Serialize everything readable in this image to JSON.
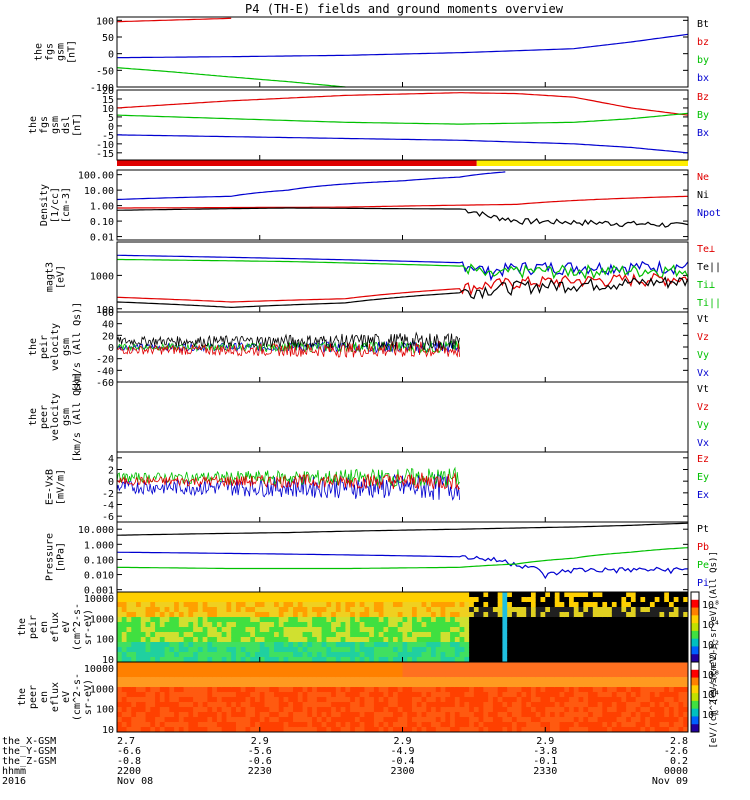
{
  "title": "P4 (TH-E) fields and ground moments overview",
  "chart_data": [
    {
      "type": "line",
      "ylabel": [
        "the",
        "fgs",
        "gsm",
        "[nT]"
      ],
      "ylim": [
        -100,
        110
      ],
      "yticks": [
        "100",
        "50",
        "0",
        "-50",
        "-100"
      ],
      "yticks_values": [
        100,
        50,
        0,
        -50,
        -100
      ],
      "legend": [
        {
          "label": "Bt",
          "color": "#000000"
        },
        {
          "label": "bz",
          "color": "#e00000"
        },
        {
          "label": "by",
          "color": "#00c000"
        },
        {
          "label": "bx",
          "color": "#0000d0"
        }
      ],
      "series": [
        {
          "name": "bz",
          "color": "#e00000",
          "x": [
            0,
            0.1,
            0.2
          ],
          "y": [
            96,
            101,
            106
          ]
        },
        {
          "name": "by",
          "color": "#00c000",
          "x": [
            0,
            0.1,
            0.2,
            0.3,
            0.4
          ],
          "y": [
            -42,
            -55,
            -70,
            -84,
            -100
          ]
        },
        {
          "name": "bx",
          "color": "#0000d0",
          "x": [
            0,
            0.2,
            0.4,
            0.6,
            0.8,
            0.9,
            1
          ],
          "y": [
            -12,
            -9,
            -5,
            3,
            15,
            35,
            58
          ]
        }
      ]
    },
    {
      "type": "line",
      "ylabel": [
        "the",
        "fgs",
        "gsm",
        "dsl",
        "[nT]"
      ],
      "ylim": [
        -19,
        20
      ],
      "yticks": [
        "20",
        "15",
        "10",
        "5",
        "0",
        "-5",
        "-10",
        "-15"
      ],
      "yticks_values": [
        20,
        15,
        10,
        5,
        0,
        -5,
        -10,
        -15
      ],
      "legend": [
        {
          "label": "Bz",
          "color": "#e00000"
        },
        {
          "label": "By",
          "color": "#00c000"
        },
        {
          "label": "Bx",
          "color": "#0000d0"
        }
      ],
      "series": [
        {
          "name": "Bz",
          "color": "#e00000",
          "x": [
            0,
            0.2,
            0.4,
            0.6,
            0.7,
            0.8,
            0.9,
            1
          ],
          "y": [
            10,
            14,
            17,
            18.5,
            18,
            16,
            10,
            6
          ]
        },
        {
          "name": "By",
          "color": "#00c000",
          "x": [
            0,
            0.2,
            0.4,
            0.6,
            0.8,
            0.9,
            1
          ],
          "y": [
            6,
            4,
            2,
            1,
            2,
            4,
            7
          ]
        },
        {
          "name": "Bx",
          "color": "#0000d0",
          "x": [
            0,
            0.2,
            0.4,
            0.6,
            0.7,
            0.8,
            0.9,
            1
          ],
          "y": [
            -5,
            -6,
            -7,
            -8,
            -9,
            -10,
            -12,
            -15
          ]
        }
      ]
    },
    {
      "type": "line",
      "ylabel": [
        "Density",
        "[1/cc]",
        "[cm-3]"
      ],
      "scale": "log",
      "ylim": [
        0.006,
        200
      ],
      "yticks": [
        "100.00",
        "10.00",
        "1.00",
        "0.10",
        "0.01"
      ],
      "yticks_values": [
        100,
        10,
        1,
        0.1,
        0.01
      ],
      "legend": [
        {
          "label": "Ne",
          "color": "#e00000"
        },
        {
          "label": "Ni",
          "color": "#000000"
        },
        {
          "label": "Npot",
          "color": "#0000d0"
        }
      ],
      "series": [
        {
          "name": "Npot",
          "color": "#0000d0",
          "x": [
            0,
            0.2,
            0.3,
            0.4,
            0.5,
            0.6,
            0.68
          ],
          "y": [
            2.5,
            4,
            10,
            25,
            40,
            70,
            150
          ]
        },
        {
          "name": "Ne",
          "color": "#e00000",
          "x": [
            0,
            0.4,
            0.7,
            1
          ],
          "y": [
            0.7,
            0.8,
            1.2,
            4
          ]
        },
        {
          "name": "Ni",
          "color": "#000000",
          "x": [
            0,
            0.3,
            0.6,
            0.65,
            0.7,
            1
          ],
          "y": [
            0.5,
            0.7,
            0.6,
            0.2,
            0.1,
            0.05
          ]
        }
      ]
    },
    {
      "type": "line",
      "ylabel": [
        "magt3",
        "[eV]"
      ],
      "scale": "log",
      "ylim": [
        80,
        10000
      ],
      "yticks": [
        "1000",
        "100"
      ],
      "yticks_values": [
        1000,
        100
      ],
      "legend": [
        {
          "label": "Te⊥",
          "color": "#e00000"
        },
        {
          "label": "Te||",
          "color": "#000000"
        },
        {
          "label": "Ti⊥",
          "color": "#00c000"
        },
        {
          "label": "Ti||",
          "color": "#00c000"
        }
      ],
      "series": [
        {
          "name": "Ti⊥",
          "color": "#0000d0",
          "x": [
            0,
            0.3,
            0.6,
            0.65,
            0.7,
            1
          ],
          "y": [
            4000,
            3200,
            2400,
            1200,
            1700,
            1800
          ]
        },
        {
          "name": "Ti||",
          "color": "#00c000",
          "x": [
            0,
            0.3,
            0.6,
            0.65,
            0.7,
            1
          ],
          "y": [
            3000,
            2600,
            1900,
            900,
            1300,
            1400
          ]
        },
        {
          "name": "Te⊥",
          "color": "#e00000",
          "x": [
            0,
            0.2,
            0.4,
            0.6,
            0.7,
            1
          ],
          "y": [
            220,
            160,
            200,
            400,
            600,
            800
          ]
        },
        {
          "name": "Te||",
          "color": "#000000",
          "x": [
            0,
            0.2,
            0.4,
            0.6,
            0.7,
            1
          ],
          "y": [
            160,
            110,
            150,
            300,
            450,
            650
          ]
        }
      ]
    },
    {
      "type": "line",
      "ylabel": [
        "the",
        "peir",
        "velocity",
        "gsm",
        "[km/s (All Qs)]"
      ],
      "ylim": [
        -60,
        60
      ],
      "yticks": [
        "60",
        "40",
        "20",
        "0",
        "-20",
        "-40",
        "-60"
      ],
      "yticks_values": [
        60,
        40,
        20,
        0,
        -20,
        -40,
        -60
      ],
      "legend": [
        {
          "label": "Vt",
          "color": "#000000"
        },
        {
          "label": "Vz",
          "color": "#e00000"
        },
        {
          "label": "Vy",
          "color": "#00c000"
        },
        {
          "label": "Vx",
          "color": "#0000d0"
        }
      ]
    },
    {
      "type": "line",
      "ylabel": [
        "the",
        "peer",
        "velocity",
        "gsm",
        "[km/s (All Qs)]"
      ],
      "legend": [
        {
          "label": "Vt",
          "color": "#000000"
        },
        {
          "label": "Vz",
          "color": "#e00000"
        },
        {
          "label": "Vy",
          "color": "#00c000"
        },
        {
          "label": "Vx",
          "color": "#0000d0"
        }
      ]
    },
    {
      "type": "line",
      "ylabel": [
        "E=-VxB",
        "[mV/m]"
      ],
      "ylim": [
        -7,
        5
      ],
      "yticks": [
        "4",
        "2",
        "0",
        "-2",
        "-4",
        "-6"
      ],
      "yticks_values": [
        4,
        2,
        0,
        -2,
        -4,
        -6
      ],
      "legend": [
        {
          "label": "Ez",
          "color": "#e00000"
        },
        {
          "label": "Ey",
          "color": "#00c000"
        },
        {
          "label": "Ex",
          "color": "#0000d0"
        }
      ]
    },
    {
      "type": "line",
      "ylabel": [
        "Pressure",
        "[nPa]"
      ],
      "scale": "log",
      "ylim": [
        0.0007,
        30
      ],
      "yticks": [
        "10.000",
        "1.000",
        "0.100",
        "0.010",
        "0.001"
      ],
      "yticks_values": [
        10,
        1,
        0.1,
        0.01,
        0.001
      ],
      "legend": [
        {
          "label": "Pt",
          "color": "#000000"
        },
        {
          "label": "Pb",
          "color": "#e00000"
        },
        {
          "label": "Pe",
          "color": "#00c000"
        },
        {
          "label": "Pi",
          "color": "#0000d0"
        }
      ],
      "series": [
        {
          "name": "Pt",
          "color": "#000000",
          "x": [
            0,
            0.3,
            0.6,
            0.8,
            0.9,
            1
          ],
          "y": [
            4,
            6,
            10,
            14,
            18,
            25
          ]
        },
        {
          "name": "Pi",
          "color": "#0000d0",
          "x": [
            0,
            0.2,
            0.4,
            0.6,
            0.7,
            0.75,
            0.8,
            1
          ],
          "y": [
            0.3,
            0.25,
            0.2,
            0.15,
            0.05,
            0.008,
            0.02,
            0.02
          ]
        },
        {
          "name": "Pe",
          "color": "#00c000",
          "x": [
            0,
            0.2,
            0.4,
            0.6,
            0.7,
            0.8,
            0.9,
            1
          ],
          "y": [
            0.03,
            0.025,
            0.025,
            0.03,
            0.05,
            0.12,
            0.3,
            0.6
          ]
        }
      ]
    },
    {
      "type": "heatmap",
      "ylabel": [
        "the",
        "peir",
        "en",
        "eflux",
        "eV",
        "(cm^2-s-",
        "sr-eV)"
      ],
      "scale": "log",
      "ylim": [
        7,
        20000
      ],
      "yticks": [
        "10000",
        "1000",
        "100",
        "10"
      ],
      "yticks_values": [
        10000,
        1000,
        100,
        10
      ],
      "colorbar": {
        "ticks": [
          "10⁸",
          "10⁴",
          "10²"
        ],
        "label": "[eV/(cm^2-s-sr-eV) (All Qs)]"
      }
    },
    {
      "type": "heatmap",
      "ylabel": [
        "the",
        "peer",
        "en",
        "eflux",
        "eV",
        "(cm^2-s-",
        "sr-eV)"
      ],
      "scale": "log",
      "ylim": [
        7,
        20000
      ],
      "yticks": [
        "10000",
        "1000",
        "100",
        "10"
      ],
      "yticks_values": [
        10000,
        1000,
        100,
        10
      ],
      "colorbar": {
        "ticks": [
          "10⁸",
          "10⁴",
          "10²"
        ],
        "label": "[eV/(cm^2-s-sr-eV)]"
      }
    }
  ],
  "x_axis": {
    "rows": [
      {
        "label": "the_X-GSM",
        "values": [
          "2.7",
          "2.9",
          "2.9",
          "2.9",
          "2.8"
        ]
      },
      {
        "label": "the_Y-GSM",
        "values": [
          "-6.6",
          "-5.6",
          "-4.9",
          "-3.8",
          "-2.6"
        ]
      },
      {
        "label": "the_Z-GSM",
        "values": [
          "-0.8",
          "-0.6",
          "-0.4",
          "-0.1",
          "0.2"
        ]
      },
      {
        "label": "hhmm",
        "values": [
          "2200",
          "2230",
          "2300",
          "2330",
          "0000"
        ]
      },
      {
        "label": "2016",
        "values": [
          "Nov 08",
          "",
          "",
          "",
          "Nov 09"
        ]
      }
    ]
  }
}
